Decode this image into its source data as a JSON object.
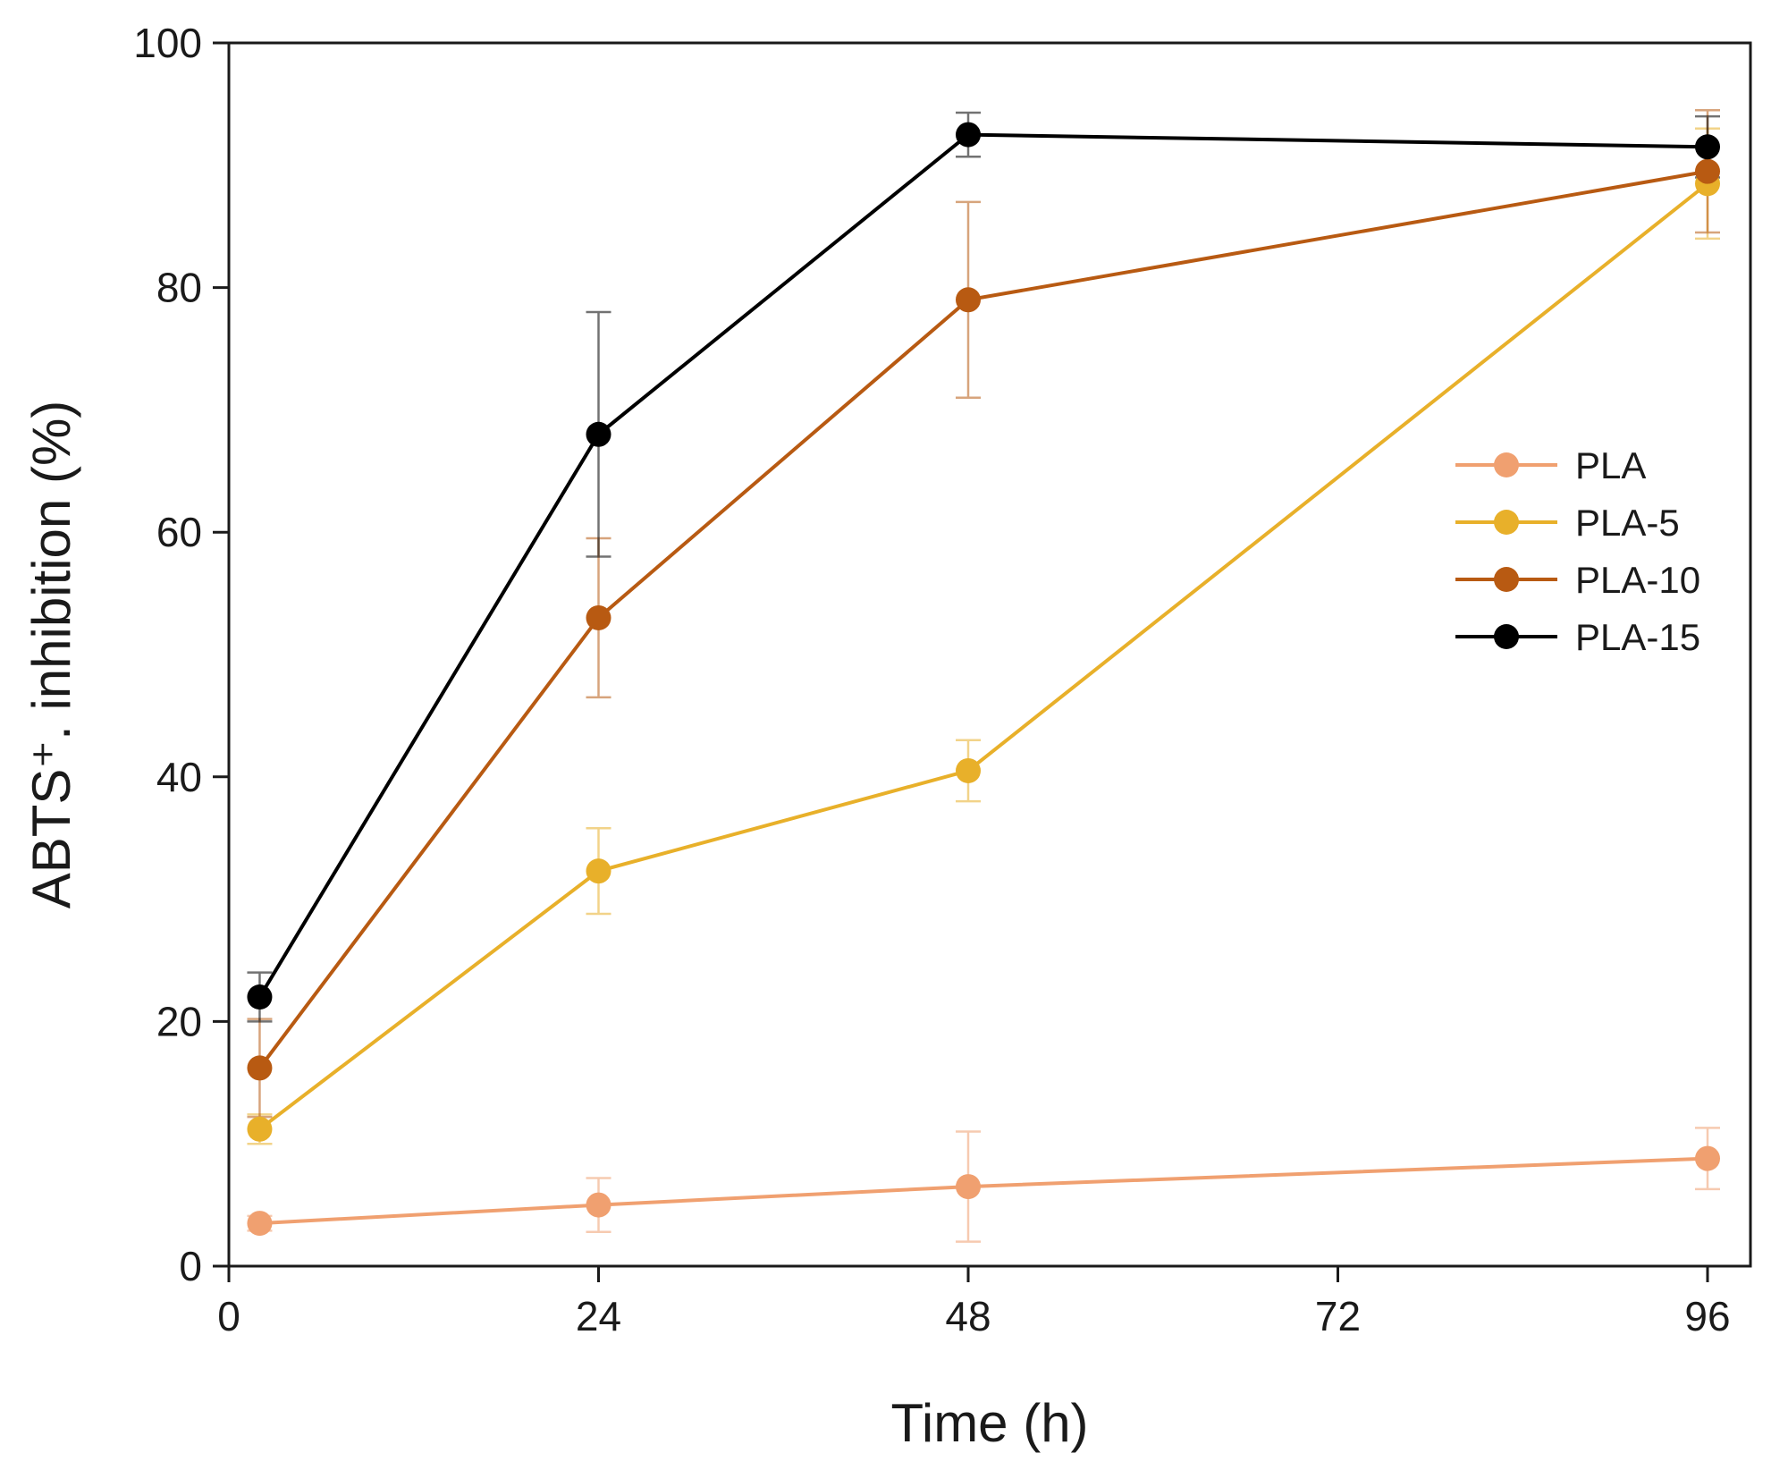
{
  "chart_data": {
    "type": "line",
    "title": "",
    "xlabel": "Time (h)",
    "ylabel": "ABTS⁺. inhibition (%)",
    "xlim": [
      0,
      100
    ],
    "ylim": [
      0,
      100
    ],
    "xticks": [
      0,
      24,
      48,
      72,
      96
    ],
    "yticks": [
      0,
      20,
      40,
      60,
      80,
      100
    ],
    "grid": false,
    "legend_position": "right-middle",
    "x": [
      2,
      24,
      48,
      96
    ],
    "series": [
      {
        "name": "PLA",
        "color": "#f0a070",
        "values": [
          3.5,
          5.0,
          6.5,
          8.8
        ],
        "errors": [
          0.6,
          2.2,
          4.5,
          2.5
        ]
      },
      {
        "name": "PLA-5",
        "color": "#e8b02a",
        "values": [
          11.2,
          32.3,
          40.5,
          88.5
        ],
        "errors": [
          1.2,
          3.5,
          2.5,
          4.5
        ]
      },
      {
        "name": "PLA-10",
        "color": "#b85a12",
        "values": [
          16.2,
          53.0,
          79.0,
          89.5
        ],
        "errors": [
          4.0,
          6.5,
          8.0,
          5.0
        ]
      },
      {
        "name": "PLA-15",
        "color": "#000000",
        "values": [
          22.0,
          68.0,
          92.5,
          91.5
        ],
        "errors": [
          2.0,
          10.0,
          1.8,
          2.5
        ]
      }
    ]
  }
}
